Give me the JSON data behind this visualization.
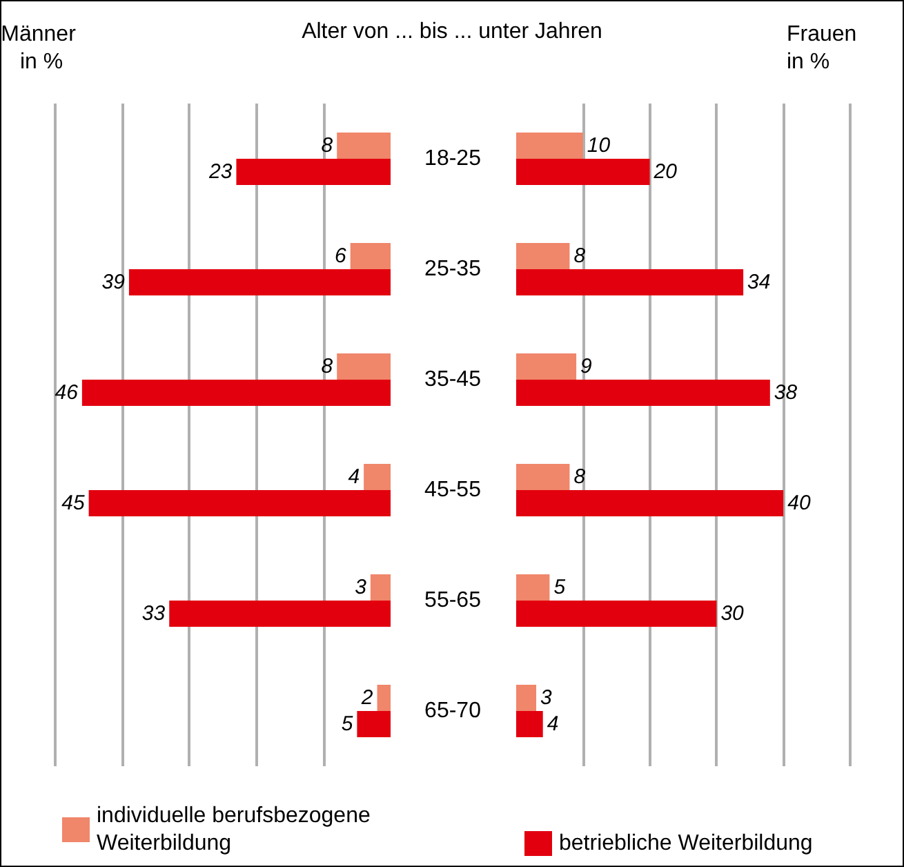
{
  "chart_data": [
    {
      "type": "bar",
      "orientation": "horizontal",
      "title": "Alter von ... bis ... unter Jahren",
      "xlabel": "Männer in %",
      "categories": [
        "18-25",
        "25-35",
        "35-45",
        "45-55",
        "55-65",
        "65-70"
      ],
      "series": [
        {
          "name": "individuelle berufsbezogene Weiterbildung",
          "color": "#f0866a",
          "values": [
            8,
            6,
            8,
            4,
            3,
            2
          ]
        },
        {
          "name": "betriebliche Weiterbildung",
          "color": "#e2000f",
          "values": [
            23,
            39,
            46,
            45,
            33,
            5
          ]
        }
      ],
      "xlim": [
        50,
        0
      ],
      "xticks": [
        {
          "value": 10,
          "label": null
        },
        {
          "value": 20,
          "label": null
        },
        {
          "value": 30,
          "label": null
        },
        {
          "value": 40,
          "label": null
        },
        {
          "value": 50,
          "label": null
        }
      ],
      "grid": "x",
      "tick_labels": "y",
      "data_labels": true,
      "legend": "bottom"
    },
    {
      "type": "bar",
      "orientation": "horizontal",
      "xlabel": "Frauen in %",
      "series": [
        {
          "color": "#f0866a",
          "values": [
            10,
            8,
            9,
            8,
            5,
            3
          ]
        },
        {
          "color": "#e2000f",
          "values": [
            20,
            34,
            38,
            40,
            30,
            4
          ]
        }
      ],
      "xlim": [
        0,
        50
      ],
      "xticks": [
        {
          "value": 10,
          "label": null
        },
        {
          "value": 20,
          "label": null
        },
        {
          "value": 30,
          "label": null
        },
        {
          "value": 40,
          "label": null
        },
        {
          "value": 50,
          "label": null
        }
      ],
      "grid": "x",
      "tick_labels": false,
      "data_labels": true
    }
  ]
}
